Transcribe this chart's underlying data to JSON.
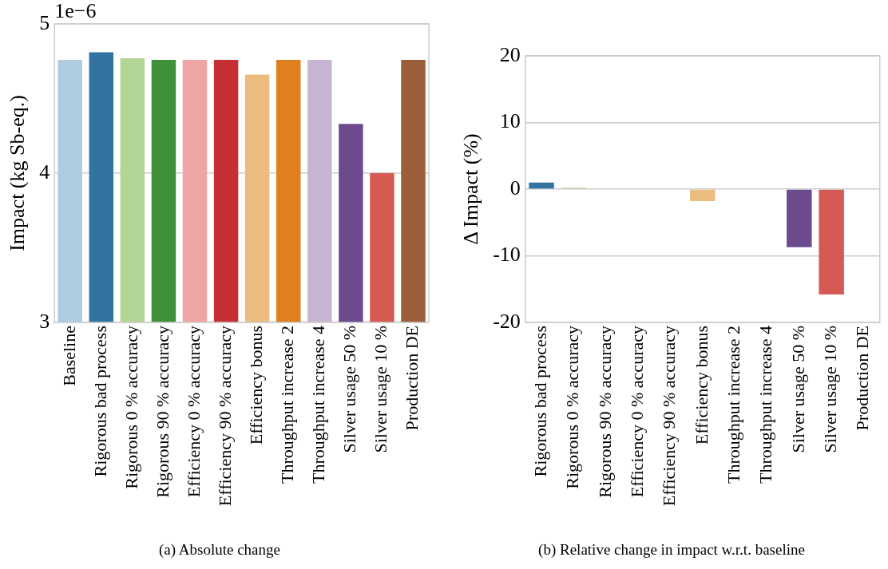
{
  "chart_data": [
    {
      "type": "bar",
      "title": "(a) Absolute change",
      "ylabel": "Impact (kg Sb-eq.)",
      "annotations": [
        "1e−6"
      ],
      "categories": [
        "Baseline",
        "Rigorous bad process",
        "Rigorous 0 % accuracy",
        "Rigorous 90 % accuracy",
        "Efficiency 0 % accuracy",
        "Efficiency 90 % accuracy",
        "Efficiency bonus",
        "Throughput increase 2",
        "Throughput increase 4",
        "Silver usage 50 %",
        "Silver usage 10 %",
        "Production DE"
      ],
      "values": [
        4.76,
        4.81,
        4.77,
        4.76,
        4.76,
        4.76,
        4.66,
        4.76,
        4.76,
        4.33,
        4.0,
        4.76
      ],
      "colors": [
        "#afcbdf",
        "#3274a1",
        "#b3d595",
        "#3f913a",
        "#f0a5a5",
        "#c63034",
        "#ebbc80",
        "#e07e20",
        "#c8b5d3",
        "#6b4a8d",
        "#d55a54",
        "#9c5e3a"
      ],
      "ylim": [
        3,
        5
      ],
      "yticks": [
        3,
        4,
        5
      ],
      "grid": "y",
      "legend": false
    },
    {
      "type": "bar",
      "title": "(b) Relative change in impact w.r.t. baseline",
      "ylabel": "Δ Impact (%)",
      "categories": [
        "Rigorous bad process",
        "Rigorous 0 % accuracy",
        "Rigorous 90 % accuracy",
        "Efficiency 0 % accuracy",
        "Efficiency 90 % accuracy",
        "Efficiency bonus",
        "Throughput increase 2",
        "Throughput increase 4",
        "Silver usage 50 %",
        "Silver usage 10 %",
        "Production DE"
      ],
      "values": [
        1.0,
        0.2,
        0,
        0.1,
        0,
        -1.8,
        0,
        0,
        -8.7,
        -15.8,
        0
      ],
      "colors": [
        "#3274a1",
        "#b3d595",
        "#3f913a",
        "#f0a5a5",
        "#c63034",
        "#ebbc80",
        "#e07e20",
        "#c8b5d3",
        "#6b4a8d",
        "#d55a54",
        "#9c5e3a"
      ],
      "ylim": [
        -20,
        20
      ],
      "yticks": [
        -20,
        -10,
        0,
        10,
        20
      ],
      "grid": "y",
      "legend": false
    }
  ]
}
